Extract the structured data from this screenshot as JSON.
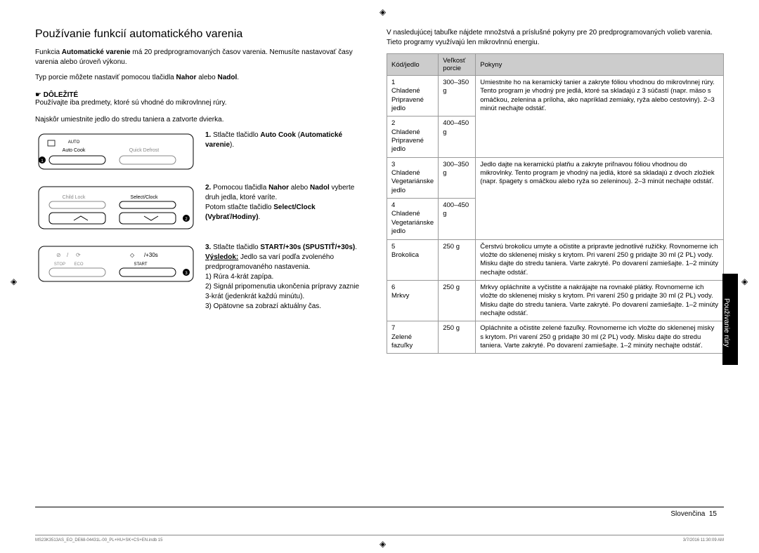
{
  "heading": "Používanie funkcií automatického varenia",
  "intro1_a": "Funkcia ",
  "intro1_b": "Automatické varenie",
  "intro1_c": " má 20 predprogramovaných časov varenia. Nemusíte nastavovať časy varenia alebo úroveň výkonu.",
  "intro2_a": "Typ porcie môžete nastaviť pomocou tlačidla ",
  "intro2_b": "Nahor",
  "intro2_c": " alebo ",
  "intro2_d": "Nadol",
  "intro2_e": ".",
  "important_icon": "☛",
  "important_label": "DÔLEŽITÉ",
  "important_text": "Používajte iba predmety, ktoré sú vhodné do mikrovlnnej rúry.",
  "instr_lead": "Najskôr umiestnite jedlo do stredu taniera a zatvorte dvierka.",
  "panel1": {
    "auto_cook": "Auto Cook",
    "quick_defrost": "Quick Defrost",
    "auto_icon": "AUTO"
  },
  "panel2": {
    "child_lock": "Child Lock",
    "select_clock": "Select/Clock"
  },
  "panel3": {
    "stop": "STOP",
    "eco": "ECO",
    "start": "START",
    "plus30": "/+30s",
    "diamond": "◇"
  },
  "step1_a": "1. ",
  "step1_b": "Stlačte tlačidlo ",
  "step1_c": "Auto Cook",
  "step1_d": " (",
  "step1_e": "Automatické varenie",
  "step1_f": ").",
  "step2_a": "2. ",
  "step2_b": "Pomocou tlačidla ",
  "step2_c": "Nahor",
  "step2_d": " alebo ",
  "step2_e": "Nadol",
  "step2_f": " vyberte druh jedla, ktoré varíte.",
  "step2_g": "Potom stlačte tlačidlo ",
  "step2_h": "Select/Clock (Vybrať/Hodiny)",
  "step2_i": ".",
  "step3_a": "3. ",
  "step3_b": "Stlačte tlačidlo ",
  "step3_c": "START/+30s (SPUSTIŤ/+30s)",
  "step3_d": ".",
  "step3_e": "Výsledok:",
  "step3_f": " Jedlo sa varí podľa zvoleného predprogramovaného nastavenia.",
  "step3_g": "1) Rúra 4-krát zapípa.",
  "step3_h": "2) Signál pripomenutia ukončenia prípravy zaznie 3-krát (jedenkrát každú minútu).",
  "step3_i": "3) Opätovne sa zobrazí aktuálny čas.",
  "right_intro": "V nasledujúcej tabuľke nájdete množstvá a príslušné pokyny pre 20 predprogramovaných volieb varenia. Tieto programy využívajú len mikrovlnnú energiu.",
  "table": {
    "headers": [
      "Kód/jedlo",
      "Veľkosť porcie",
      "Pokyny"
    ],
    "rows": [
      {
        "code": "1",
        "food": "Chladené Pripravené jedlo",
        "size": "300–350 g",
        "span": 2,
        "instr": "Umiestnite ho na keramický tanier a zakryte fóliou vhodnou do mikrovlnnej rúry. Tento program je vhodný pre jedlá, ktoré sa skladajú z 3 súčastí (napr. mäso s omáčkou, zelenina a príloha, ako napríklad zemiaky, ryža alebo cestoviny). 2–3 minút nechajte odstáť."
      },
      {
        "code": "2",
        "food": "Chladené Pripravené jedlo",
        "size": "400–450 g"
      },
      {
        "code": "3",
        "food": "Chladené Vegetariánske jedlo",
        "size": "300–350 g",
        "span": 2,
        "instr": "Jedlo dajte na keramickú platňu a zakryte priľnavou fóliou vhodnou do mikrovlnky. Tento program je vhodný na jedlá, ktoré sa skladajú z dvoch zložiek (napr. špagety s omáčkou alebo ryža so zeleninou). 2–3 minút nechajte odstáť."
      },
      {
        "code": "4",
        "food": "Chladené Vegetariánske jedlo",
        "size": "400–450 g"
      },
      {
        "code": "5",
        "food": "Brokolica",
        "size": "250 g",
        "instr": "Čerstvú brokolicu umyte a očistite a pripravte jednotlivé ružičky. Rovnomerne ich vložte do sklenenej misky s krytom. Pri varení 250 g pridajte 30 ml (2 PL) vody. Misku dajte do stredu taniera. Varte zakryté. Po dovarení zamiešajte. 1–2 minúty nechajte odstáť."
      },
      {
        "code": "6",
        "food": "Mrkvy",
        "size": "250 g",
        "instr": "Mrkvy opláchnite a vyčistite a nakrájajte na rovnaké plátky. Rovnomerne ich vložte do sklenenej misky s krytom. Pri varení 250 g pridajte 30 ml (2 PL) vody. Misku dajte do stredu taniera. Varte zakryté. Po dovarení zamiešajte. 1–2 minúty nechajte odstáť."
      },
      {
        "code": "7",
        "food": "Zelené fazuľky",
        "size": "250 g",
        "instr": "Opláchnite a očistite zelené fazuľky. Rovnomerne ich vložte do sklenenej misky s krytom. Pri varení 250 g pridajte 30 ml (2 PL) vody. Misku dajte do stredu taniera. Varte zakryté. Po dovarení zamiešajte. 1–2 minúty nechajte odstáť."
      }
    ]
  },
  "side_tab": "Používanie rúry",
  "footer_lang": "Slovenčina",
  "footer_page": "15",
  "doc_ref": "MS23K3513AS_EO_DE68-04431L-00_PL+HU+SK+CS+EN.indb   15",
  "doc_date": "3/7/2016   11:30:09 AM",
  "colors": {
    "header_bg": "#cccccc",
    "border": "#999999",
    "tab_bg": "#000000"
  }
}
